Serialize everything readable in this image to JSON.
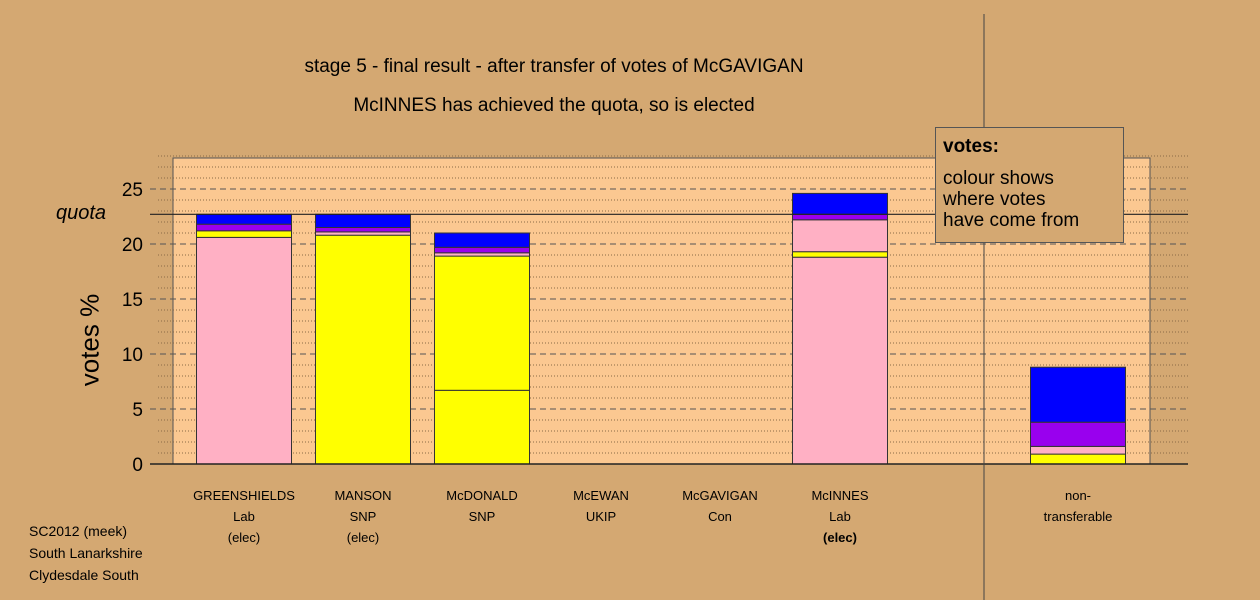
{
  "title_line1": "stage 5 - final result - after transfer of votes of McGAVIGAN",
  "title_line2": "McINNES has achieved the quota, so is elected",
  "legend": {
    "title": "votes:",
    "line1": "colour shows",
    "line2": "where votes",
    "line3": "have come from"
  },
  "footer": {
    "line1": "SC2012 (meek)",
    "line2": "South Lanarkshire",
    "line3": "Clydesdale South"
  },
  "colors": {
    "background": "#d4a872",
    "plot_area": "#fbc891",
    "Lab": "#ffb0c4",
    "SNP": "#ffff00",
    "Other": "#9900ee",
    "Con": "#0000ff"
  },
  "chart_data": {
    "type": "bar",
    "stacked": true,
    "ylabel": "votes %",
    "ylim": [
      0,
      28
    ],
    "yticks": [
      0,
      5,
      10,
      15,
      20,
      25
    ],
    "quota": 22.7,
    "quota_label": "quota",
    "candidates": [
      {
        "name": "GREENSHIELDS",
        "party": "Lab",
        "status": "(elec)",
        "status_bold": false,
        "segments": [
          {
            "color": "#ffb0c4",
            "value": 20.6
          },
          {
            "color": "#ffff00",
            "value": 0.6
          },
          {
            "color": "#9900ee",
            "value": 0.6
          },
          {
            "color": "#0000ff",
            "value": 0.9
          }
        ]
      },
      {
        "name": "MANSON",
        "party": "SNP",
        "status": "(elec)",
        "status_bold": false,
        "segments": [
          {
            "color": "#ffff00",
            "value": 20.8
          },
          {
            "color": "#ffb0c4",
            "value": 0.3
          },
          {
            "color": "#9900ee",
            "value": 0.4
          },
          {
            "color": "#0000ff",
            "value": 1.2
          }
        ]
      },
      {
        "name": "McDONALD",
        "party": "SNP",
        "status": "",
        "status_bold": false,
        "segments": [
          {
            "color": "#ffff00",
            "value": 6.7
          },
          {
            "color": "#ffff00",
            "value": 12.2
          },
          {
            "color": "#ffb0c4",
            "value": 0.3
          },
          {
            "color": "#9900ee",
            "value": 0.5
          },
          {
            "color": "#0000ff",
            "value": 1.3
          }
        ]
      },
      {
        "name": "McEWAN",
        "party": "UKIP",
        "status": "",
        "status_bold": false,
        "segments": []
      },
      {
        "name": "McGAVIGAN",
        "party": "Con",
        "status": "",
        "status_bold": false,
        "segments": []
      },
      {
        "name": "McINNES",
        "party": "Lab",
        "status": "(elec)",
        "status_bold": true,
        "segments": [
          {
            "color": "#ffb0c4",
            "value": 18.8
          },
          {
            "color": "#ffff00",
            "value": 0.5
          },
          {
            "color": "#ffb0c4",
            "value": 2.9
          },
          {
            "color": "#9900ee",
            "value": 0.5
          },
          {
            "color": "#0000ff",
            "value": 1.9
          }
        ]
      },
      {
        "name": "non-",
        "party": "transferable",
        "status": "",
        "status_bold": false,
        "segments": [
          {
            "color": "#ffff00",
            "value": 0.9
          },
          {
            "color": "#ffb0c4",
            "value": 0.7
          },
          {
            "color": "#9900ee",
            "value": 2.2
          },
          {
            "color": "#0000ff",
            "value": 5.0
          }
        ]
      }
    ]
  }
}
